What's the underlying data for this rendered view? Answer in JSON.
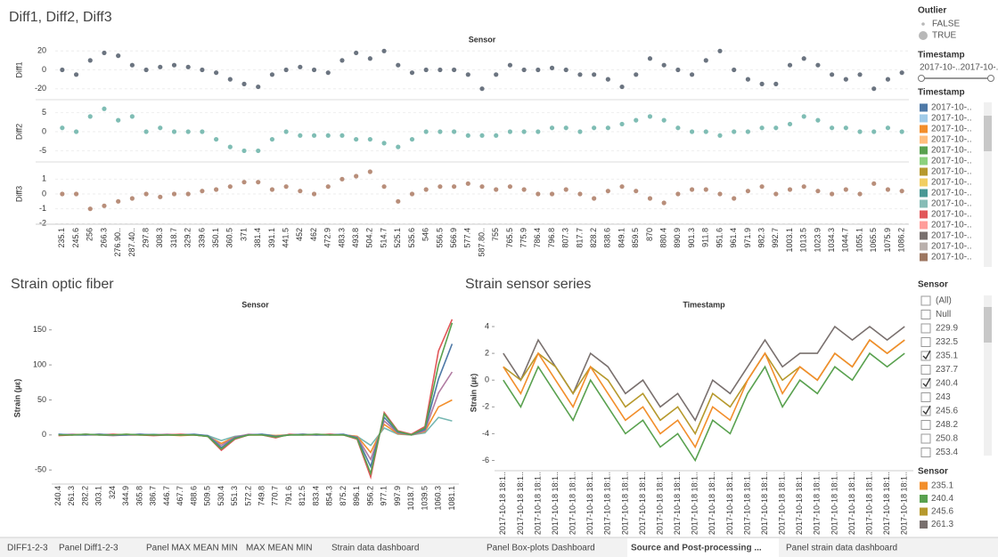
{
  "dashboard_title": "Diff1, Diff2, Diff3",
  "chart_data": [
    {
      "type": "dot",
      "column_header": "Sensor",
      "categories": [
        "235.1",
        "245.6",
        "256",
        "266.3",
        "276.90..",
        "287.40..",
        "297.8",
        "308.3",
        "318.7",
        "329.2",
        "339.6",
        "350.1",
        "360.5",
        "371",
        "381.4",
        "391.1",
        "441.5",
        "452",
        "462",
        "472.9",
        "483.3",
        "493.8",
        "504.2",
        "514.7",
        "525.1",
        "535.6",
        "546",
        "556.5",
        "566.9",
        "577.4",
        "587.80..",
        "755",
        "765.5",
        "775.9",
        "786.4",
        "796.8",
        "807.3",
        "817.7",
        "828.2",
        "838.6",
        "849.1",
        "859.5",
        "870",
        "880.4",
        "890.9",
        "901.3",
        "911.8",
        "951.6",
        "961.4",
        "971.9",
        "982.3",
        "992.7",
        "1003.1",
        "1013.5",
        "1023.9",
        "1034.3",
        "1044.7",
        "1055.1",
        "1065.5",
        "1075.9",
        "1086.2"
      ],
      "series": [
        {
          "name": "Diff1",
          "color": "#6b7480",
          "ylim": [
            -25,
            25
          ],
          "yticks": [
            20,
            0,
            -20
          ],
          "values": [
            0,
            -5,
            10,
            18,
            15,
            5,
            0,
            3,
            5,
            3,
            0,
            -3,
            -10,
            -15,
            -18,
            -5,
            0,
            3,
            0,
            -3,
            10,
            18,
            12,
            20,
            5,
            -3,
            0,
            0,
            0,
            -5,
            -20,
            -5,
            5,
            0,
            0,
            2,
            0,
            -5,
            -5,
            -10,
            -18,
            -5,
            12,
            5,
            0,
            -5,
            10,
            20,
            0,
            -10,
            -15,
            -15,
            5,
            12,
            5,
            -5,
            -10,
            -5,
            -20,
            -10,
            -3
          ]
        },
        {
          "name": "Diff2",
          "color": "#7fbdb4",
          "ylim": [
            -7,
            7
          ],
          "yticks": [
            5,
            0,
            -5
          ],
          "values": [
            1,
            0,
            4,
            6,
            3,
            4,
            0,
            1,
            0,
            0,
            0,
            -2,
            -4,
            -5,
            -5,
            -2,
            0,
            -1,
            -1,
            -1,
            -1,
            -2,
            -2,
            -3,
            -4,
            -2,
            0,
            0,
            0,
            -1,
            -1,
            -1,
            0,
            0,
            0,
            1,
            1,
            0,
            1,
            1,
            2,
            3,
            4,
            3,
            1,
            0,
            0,
            -1,
            0,
            0,
            1,
            1,
            2,
            4,
            3,
            1,
            1,
            0,
            0,
            1,
            0
          ]
        },
        {
          "name": "Diff3",
          "color": "#b88e7a",
          "ylim": [
            -1.8,
            1.8
          ],
          "yticks": [
            1,
            0,
            -1,
            -2
          ],
          "values": [
            0,
            0,
            -1,
            -0.8,
            -0.5,
            -0.3,
            0,
            -0.2,
            0,
            0,
            0.2,
            0.3,
            0.5,
            0.8,
            0.8,
            0.3,
            0.5,
            0.2,
            0,
            0.5,
            1,
            1.2,
            1.5,
            0.5,
            -0.5,
            0,
            0.3,
            0.5,
            0.5,
            0.7,
            0.5,
            0.3,
            0.5,
            0.3,
            0,
            0,
            0.3,
            0,
            -0.3,
            0.2,
            0.5,
            0.2,
            -0.3,
            -0.6,
            0,
            0.3,
            0.3,
            0,
            -0.3,
            0.2,
            0.5,
            0,
            0.3,
            0.5,
            0.2,
            0,
            0.3,
            0,
            0.7,
            0.3,
            0.2
          ]
        }
      ]
    },
    {
      "type": "line",
      "title": "Strain optic fiber",
      "column_header": "Sensor",
      "y_label": "Strain (µε)",
      "ylim": [
        -65,
        170
      ],
      "yticks": [
        -50,
        0,
        50,
        100,
        150
      ],
      "categories": [
        "240.4",
        "261.3",
        "282.2",
        "303.1",
        "324",
        "344.9",
        "365.8",
        "386.7",
        "446.7",
        "467.7",
        "488.6",
        "509.5",
        "530.4",
        "551.3",
        "572.2",
        "749.8",
        "770.7",
        "791.6",
        "812.5",
        "833.4",
        "854.3",
        "875.2",
        "896.1",
        "956.2",
        "977.1",
        "997.9",
        "1018.7",
        "1039.5",
        "1060.3",
        "1081.1"
      ],
      "series": [
        {
          "color": "#59a14f",
          "values": [
            0,
            0,
            1,
            0,
            0,
            1,
            0,
            0,
            0,
            0,
            0,
            -2,
            -20,
            -5,
            0,
            0,
            -3,
            0,
            0,
            1,
            0,
            0,
            -5,
            -55,
            30,
            5,
            0,
            10,
            100,
            160
          ]
        },
        {
          "color": "#4e79a7",
          "values": [
            1,
            0,
            0,
            1,
            0,
            0,
            1,
            0,
            0,
            0,
            1,
            -1,
            -18,
            -4,
            0,
            1,
            -2,
            0,
            1,
            0,
            0,
            1,
            -4,
            -45,
            25,
            4,
            0,
            8,
            80,
            130
          ]
        },
        {
          "color": "#e15759",
          "values": [
            -1,
            0,
            1,
            0,
            1,
            0,
            0,
            -1,
            0,
            1,
            0,
            -2,
            -22,
            -6,
            0,
            0,
            -4,
            1,
            0,
            0,
            1,
            0,
            -6,
            -60,
            32,
            6,
            1,
            12,
            120,
            165
          ]
        },
        {
          "color": "#b07aa1",
          "values": [
            0,
            1,
            0,
            0,
            -1,
            0,
            1,
            0,
            1,
            0,
            0,
            -1,
            -15,
            -3,
            1,
            0,
            -2,
            0,
            0,
            1,
            0,
            0,
            -3,
            -35,
            20,
            3,
            0,
            6,
            60,
            90
          ]
        },
        {
          "color": "#f28e2b",
          "values": [
            0,
            0,
            0,
            1,
            0,
            1,
            0,
            0,
            0,
            -1,
            0,
            -2,
            -12,
            -3,
            0,
            0,
            -1,
            0,
            1,
            0,
            0,
            0,
            -2,
            -25,
            15,
            2,
            0,
            5,
            40,
            50
          ]
        },
        {
          "color": "#76b7b2",
          "values": [
            1,
            0,
            1,
            0,
            0,
            0,
            0,
            1,
            0,
            0,
            0,
            -1,
            -8,
            -2,
            0,
            1,
            -1,
            0,
            0,
            0,
            1,
            0,
            -2,
            -15,
            10,
            1,
            0,
            3,
            25,
            20
          ]
        }
      ]
    },
    {
      "type": "line",
      "title": "Strain sensor series",
      "column_header": "Timestamp",
      "y_label": "Strain (µε)",
      "ylim": [
        -6.5,
        4.6
      ],
      "yticks": [
        4,
        2,
        0,
        -2,
        -4,
        -6
      ],
      "legend_title": "Sensor",
      "categories": [
        "2017-10-18 18:1..",
        "2017-10-18 18:1..",
        "2017-10-18 18:1..",
        "2017-10-18 18:1..",
        "2017-10-18 18:1..",
        "2017-10-18 18:1..",
        "2017-10-18 18:1..",
        "2017-10-18 18:1..",
        "2017-10-18 18:1..",
        "2017-10-18 18:1..",
        "2017-10-18 18:1..",
        "2017-10-18 18:1..",
        "2017-10-18 18:1..",
        "2017-10-18 18:1..",
        "2017-10-18 18:1..",
        "2017-10-18 18:1..",
        "2017-10-18 18:1..",
        "2017-10-18 18:1..",
        "2017-10-18 18:1..",
        "2017-10-18 18:1..",
        "2017-10-18 18:1..",
        "2017-10-18 18:1..",
        "2017-10-18 18:1..",
        "2017-10-18 18:1.."
      ],
      "series": [
        {
          "name": "235.1",
          "color": "#f28e2b",
          "values": [
            1,
            -1,
            2,
            0,
            -2,
            1,
            -1,
            -3,
            -2,
            -4,
            -3,
            -5,
            -2,
            -3,
            0,
            2,
            -1,
            1,
            0,
            2,
            1,
            3,
            2,
            3
          ]
        },
        {
          "name": "240.4",
          "color": "#59a14f",
          "values": [
            0,
            -2,
            1,
            -1,
            -3,
            0,
            -2,
            -4,
            -3,
            -5,
            -4,
            -6,
            -3,
            -4,
            -1,
            1,
            -2,
            0,
            -1,
            1,
            0,
            2,
            1,
            2
          ]
        },
        {
          "name": "245.6",
          "color": "#b6992d",
          "values": [
            1,
            0,
            2,
            1,
            -1,
            1,
            0,
            -2,
            -1,
            -3,
            -2,
            -4,
            -1,
            -2,
            0,
            2,
            0,
            1,
            0,
            2,
            1,
            3,
            2,
            3
          ]
        },
        {
          "name": "261.3",
          "color": "#79706e",
          "values": [
            2,
            0,
            3,
            1,
            -1,
            2,
            1,
            -1,
            0,
            -2,
            -1,
            -3,
            0,
            -1,
            1,
            3,
            1,
            2,
            2,
            4,
            3,
            4,
            3,
            4
          ]
        }
      ]
    }
  ],
  "outlier_legend": {
    "title": "Outlier",
    "items": [
      "FALSE",
      "TRUE"
    ]
  },
  "timestamp_slider": {
    "title": "Timestamp",
    "range_label": "2017-10-..2017-10-.."
  },
  "timestamp_legend": {
    "title": "Timestamp",
    "items": [
      {
        "label": "2017-10-..",
        "color": "#4e79a7"
      },
      {
        "label": "2017-10-..",
        "color": "#a0cbe8"
      },
      {
        "label": "2017-10-..",
        "color": "#f28e2b"
      },
      {
        "label": "2017-10-..",
        "color": "#ffbe7d"
      },
      {
        "label": "2017-10-..",
        "color": "#59a14f"
      },
      {
        "label": "2017-10-..",
        "color": "#8cd17d"
      },
      {
        "label": "2017-10-..",
        "color": "#b6992d"
      },
      {
        "label": "2017-10-..",
        "color": "#f1ce63"
      },
      {
        "label": "2017-10-..",
        "color": "#499894"
      },
      {
        "label": "2017-10-..",
        "color": "#86bcb6"
      },
      {
        "label": "2017-10-..",
        "color": "#e15759"
      },
      {
        "label": "2017-10-..",
        "color": "#ff9d9a"
      },
      {
        "label": "2017-10-..",
        "color": "#79706e"
      },
      {
        "label": "2017-10-..",
        "color": "#bab0ac"
      },
      {
        "label": "2017-10-..",
        "color": "#9d7660"
      }
    ]
  },
  "sensor_filter": {
    "title": "Sensor",
    "items": [
      {
        "label": "(All)",
        "checked": false
      },
      {
        "label": "Null",
        "checked": false
      },
      {
        "label": "229.9",
        "checked": false
      },
      {
        "label": "232.5",
        "checked": false
      },
      {
        "label": "235.1",
        "checked": true
      },
      {
        "label": "237.7",
        "checked": false
      },
      {
        "label": "240.4",
        "checked": true
      },
      {
        "label": "243",
        "checked": false
      },
      {
        "label": "245.6",
        "checked": true
      },
      {
        "label": "248.2",
        "checked": false
      },
      {
        "label": "250.8",
        "checked": false
      },
      {
        "label": "253.4",
        "checked": false
      }
    ]
  },
  "tabs": [
    "DIFF1-2-3",
    "Panel Diff1-2-3",
    "Panel MAX MEAN MIN",
    "MAX MEAN MIN",
    "Strain data dashboard",
    "Panel Box-plots Dashboard",
    "Source and Post-processing ...",
    "Panel strain data dashboard"
  ],
  "active_tab": 6
}
